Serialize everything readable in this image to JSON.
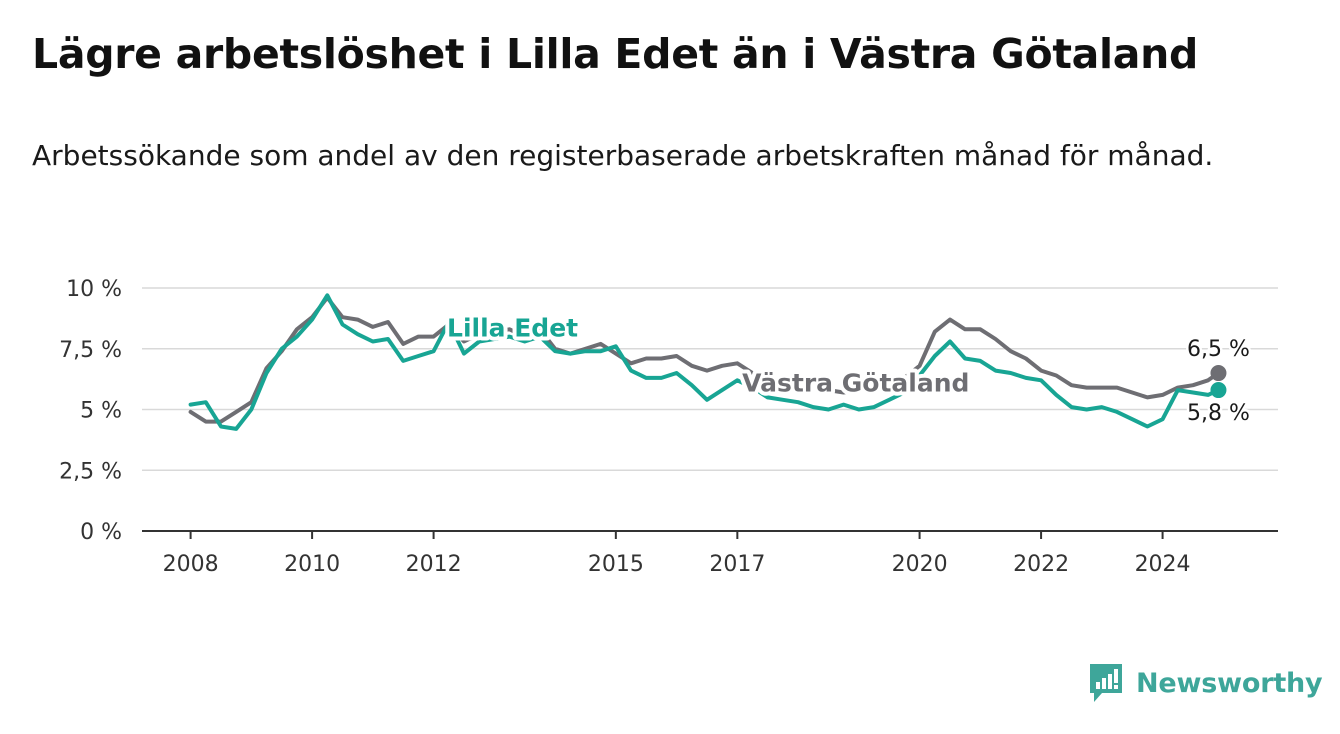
{
  "title": "Lägre arbetslöshet i Lilla Edet än i Västra Götaland",
  "subtitle": "Arbetssökande som andel av den registerbaserade arbetskraften månad för månad.",
  "brand": {
    "name": "Newsworthy",
    "icon": "newsworthy-logo-icon",
    "color": "#3ea69a"
  },
  "chart_data": {
    "type": "line",
    "title": "Lägre arbetslöshet i Lilla Edet än i Västra Götaland",
    "subtitle": "Arbetssökande som andel av den registerbaserade arbetskraften månad för månad.",
    "xlabel": "",
    "ylabel": "",
    "x_ticks": [
      {
        "value": 2008,
        "label": "2008"
      },
      {
        "value": 2010,
        "label": "2010"
      },
      {
        "value": 2012,
        "label": "2012"
      },
      {
        "value": 2015,
        "label": "2015"
      },
      {
        "value": 2017,
        "label": "2017"
      },
      {
        "value": 2020,
        "label": "2020"
      },
      {
        "value": 2022,
        "label": "2022"
      },
      {
        "value": 2024,
        "label": "2024"
      }
    ],
    "y_ticks": [
      {
        "value": 0,
        "label": "0 %"
      },
      {
        "value": 2.5,
        "label": "2,5 %"
      },
      {
        "value": 5,
        "label": "5 %"
      },
      {
        "value": 7.5,
        "label": "7,5 %"
      },
      {
        "value": 10,
        "label": "10 %"
      }
    ],
    "xlim": [
      2007.2,
      2025.9
    ],
    "ylim": [
      0,
      10
    ],
    "grid": true,
    "legend": "inline labels",
    "end_labels": [
      {
        "series": "Västra Götaland",
        "text": "6,5 %",
        "value": 6.5
      },
      {
        "series": "Lilla Edet",
        "text": "5,8 %",
        "value": 5.8
      }
    ],
    "series": [
      {
        "name": "Västra Götaland",
        "color": "#6e6e73",
        "x": [
          2008.0,
          2008.25,
          2008.5,
          2008.75,
          2009.0,
          2009.25,
          2009.5,
          2009.75,
          2010.0,
          2010.25,
          2010.5,
          2010.75,
          2011.0,
          2011.25,
          2011.5,
          2011.75,
          2012.0,
          2012.25,
          2012.5,
          2012.75,
          2013.0,
          2013.25,
          2013.5,
          2013.75,
          2014.0,
          2014.25,
          2014.5,
          2014.75,
          2015.0,
          2015.25,
          2015.5,
          2015.75,
          2016.0,
          2016.25,
          2016.5,
          2016.75,
          2017.0,
          2017.25,
          2017.5,
          2017.75,
          2018.0,
          2018.25,
          2018.5,
          2018.75,
          2019.0,
          2019.25,
          2019.5,
          2019.75,
          2020.0,
          2020.25,
          2020.5,
          2020.75,
          2021.0,
          2021.25,
          2021.5,
          2021.75,
          2022.0,
          2022.25,
          2022.5,
          2022.75,
          2023.0,
          2023.25,
          2023.5,
          2023.75,
          2024.0,
          2024.25,
          2024.5,
          2024.75,
          2024.92
        ],
        "values": [
          4.9,
          4.5,
          4.5,
          4.9,
          5.3,
          6.7,
          7.4,
          8.3,
          8.8,
          9.6,
          8.8,
          8.7,
          8.4,
          8.6,
          7.7,
          8.0,
          8.0,
          8.5,
          7.8,
          8.1,
          8.2,
          8.3,
          8.0,
          8.3,
          7.5,
          7.3,
          7.5,
          7.7,
          7.3,
          6.9,
          7.1,
          7.1,
          7.2,
          6.8,
          6.6,
          6.8,
          6.9,
          6.5,
          6.2,
          6.3,
          6.0,
          5.9,
          5.8,
          5.7,
          5.8,
          5.8,
          6.0,
          6.3,
          6.8,
          8.2,
          8.7,
          8.3,
          8.3,
          7.9,
          7.4,
          7.1,
          6.6,
          6.4,
          6.0,
          5.9,
          5.9,
          5.9,
          5.7,
          5.5,
          5.6,
          5.9,
          6.0,
          6.2,
          6.5
        ]
      },
      {
        "name": "Lilla Edet",
        "color": "#18a594",
        "x": [
          2008.0,
          2008.25,
          2008.5,
          2008.75,
          2009.0,
          2009.25,
          2009.5,
          2009.75,
          2010.0,
          2010.25,
          2010.5,
          2010.75,
          2011.0,
          2011.25,
          2011.5,
          2011.75,
          2012.0,
          2012.25,
          2012.5,
          2012.75,
          2013.0,
          2013.25,
          2013.5,
          2013.75,
          2014.0,
          2014.25,
          2014.5,
          2014.75,
          2015.0,
          2015.25,
          2015.5,
          2015.75,
          2016.0,
          2016.25,
          2016.5,
          2016.75,
          2017.0,
          2017.25,
          2017.5,
          2017.75,
          2018.0,
          2018.25,
          2018.5,
          2018.75,
          2019.0,
          2019.25,
          2019.5,
          2019.75,
          2020.0,
          2020.25,
          2020.5,
          2020.75,
          2021.0,
          2021.25,
          2021.5,
          2021.75,
          2022.0,
          2022.25,
          2022.5,
          2022.75,
          2023.0,
          2023.25,
          2023.5,
          2023.75,
          2024.0,
          2024.25,
          2024.5,
          2024.75,
          2024.92
        ],
        "values": [
          5.2,
          5.3,
          4.3,
          4.2,
          5.0,
          6.5,
          7.5,
          8.0,
          8.7,
          9.7,
          8.5,
          8.1,
          7.8,
          7.9,
          7.0,
          7.2,
          7.4,
          8.6,
          7.3,
          7.8,
          7.9,
          8.0,
          7.8,
          8.0,
          7.4,
          7.3,
          7.4,
          7.4,
          7.6,
          6.6,
          6.3,
          6.3,
          6.5,
          6.0,
          5.4,
          5.8,
          6.2,
          5.9,
          5.5,
          5.4,
          5.3,
          5.1,
          5.0,
          5.2,
          5.0,
          5.1,
          5.4,
          5.7,
          6.4,
          7.2,
          7.8,
          7.1,
          7.0,
          6.6,
          6.5,
          6.3,
          6.2,
          5.6,
          5.1,
          5.0,
          5.1,
          4.9,
          4.6,
          4.3,
          4.6,
          5.8,
          5.7,
          5.6,
          5.8
        ]
      }
    ]
  }
}
